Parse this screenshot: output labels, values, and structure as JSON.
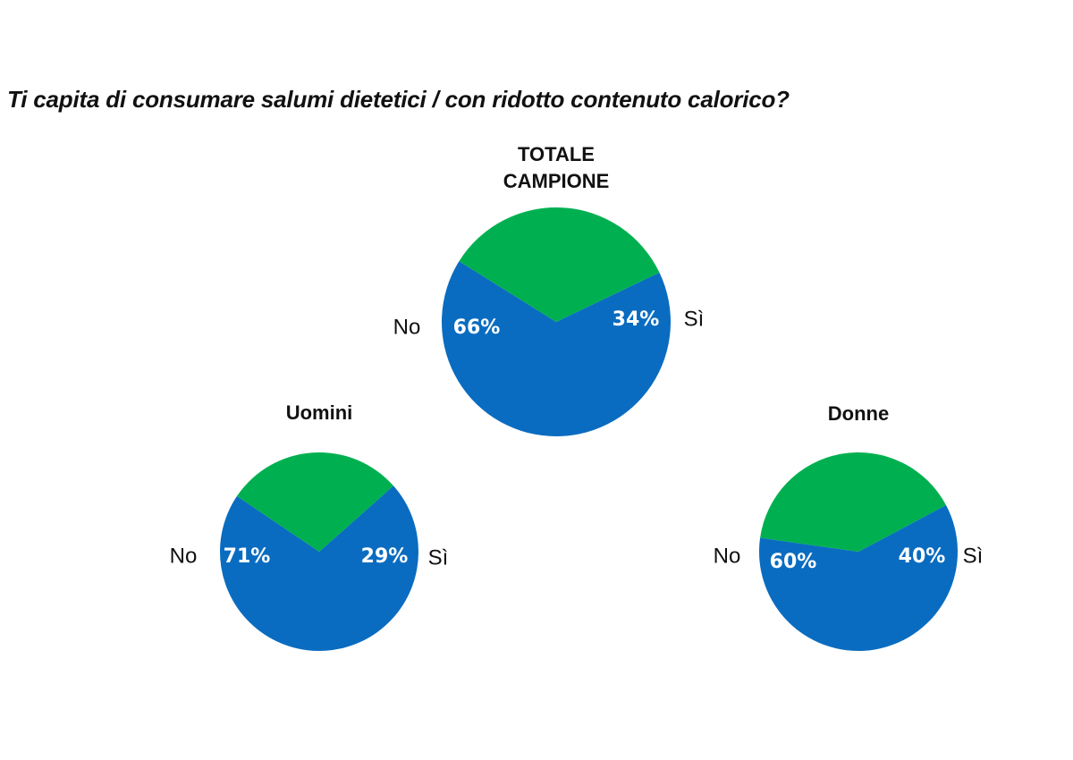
{
  "title": "Ti capita di consumare salumi dietetici / con ridotto contenuto calorico?",
  "colors": {
    "no": "#0a6cc0",
    "si": "#00b050"
  },
  "chart_data": [
    {
      "type": "pie",
      "title": [
        "TOTALE",
        "CAMPIONE"
      ],
      "slices": [
        {
          "label": "No",
          "value": 66,
          "data_label": "66%"
        },
        {
          "label": "Sì",
          "value": 34,
          "data_label": "34%"
        }
      ]
    },
    {
      "type": "pie",
      "title": [
        "Uomini"
      ],
      "slices": [
        {
          "label": "No",
          "value": 71,
          "data_label": "71%"
        },
        {
          "label": "Sì",
          "value": 29,
          "data_label": "29%"
        }
      ]
    },
    {
      "type": "pie",
      "title": [
        "Donne"
      ],
      "slices": [
        {
          "label": "No",
          "value": 60,
          "data_label": "60%"
        },
        {
          "label": "Sì",
          "value": 40,
          "data_label": "40%"
        }
      ]
    }
  ]
}
